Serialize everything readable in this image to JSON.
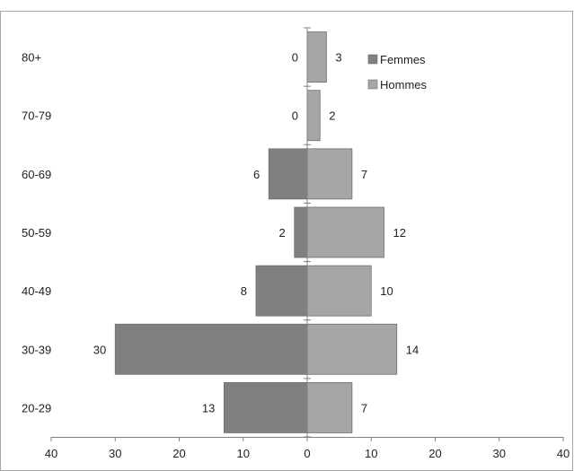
{
  "chart_data": {
    "type": "bar",
    "orientation": "horizontal",
    "layout": "population-pyramid",
    "categories": [
      "20-29",
      "30-39",
      "40-49",
      "50-59",
      "60-69",
      "70-79",
      "80+"
    ],
    "series": [
      {
        "name": "Femmes",
        "values": [
          13,
          30,
          8,
          2,
          6,
          0,
          0
        ],
        "color": "#808080",
        "side": "left"
      },
      {
        "name": "Hommes",
        "values": [
          7,
          14,
          10,
          12,
          7,
          2,
          3
        ],
        "color": "#a6a6a6",
        "side": "right"
      }
    ],
    "xlim": [
      -40,
      40
    ],
    "xticks": [
      -40,
      -30,
      -20,
      -10,
      0,
      10,
      20,
      30,
      40
    ],
    "xtick_labels": [
      "40",
      "30",
      "20",
      "10",
      "0",
      "10",
      "20",
      "30",
      "40"
    ],
    "title": "",
    "xlabel": "",
    "ylabel": "",
    "grid": false,
    "legend": "top-right",
    "data_labels": true
  }
}
